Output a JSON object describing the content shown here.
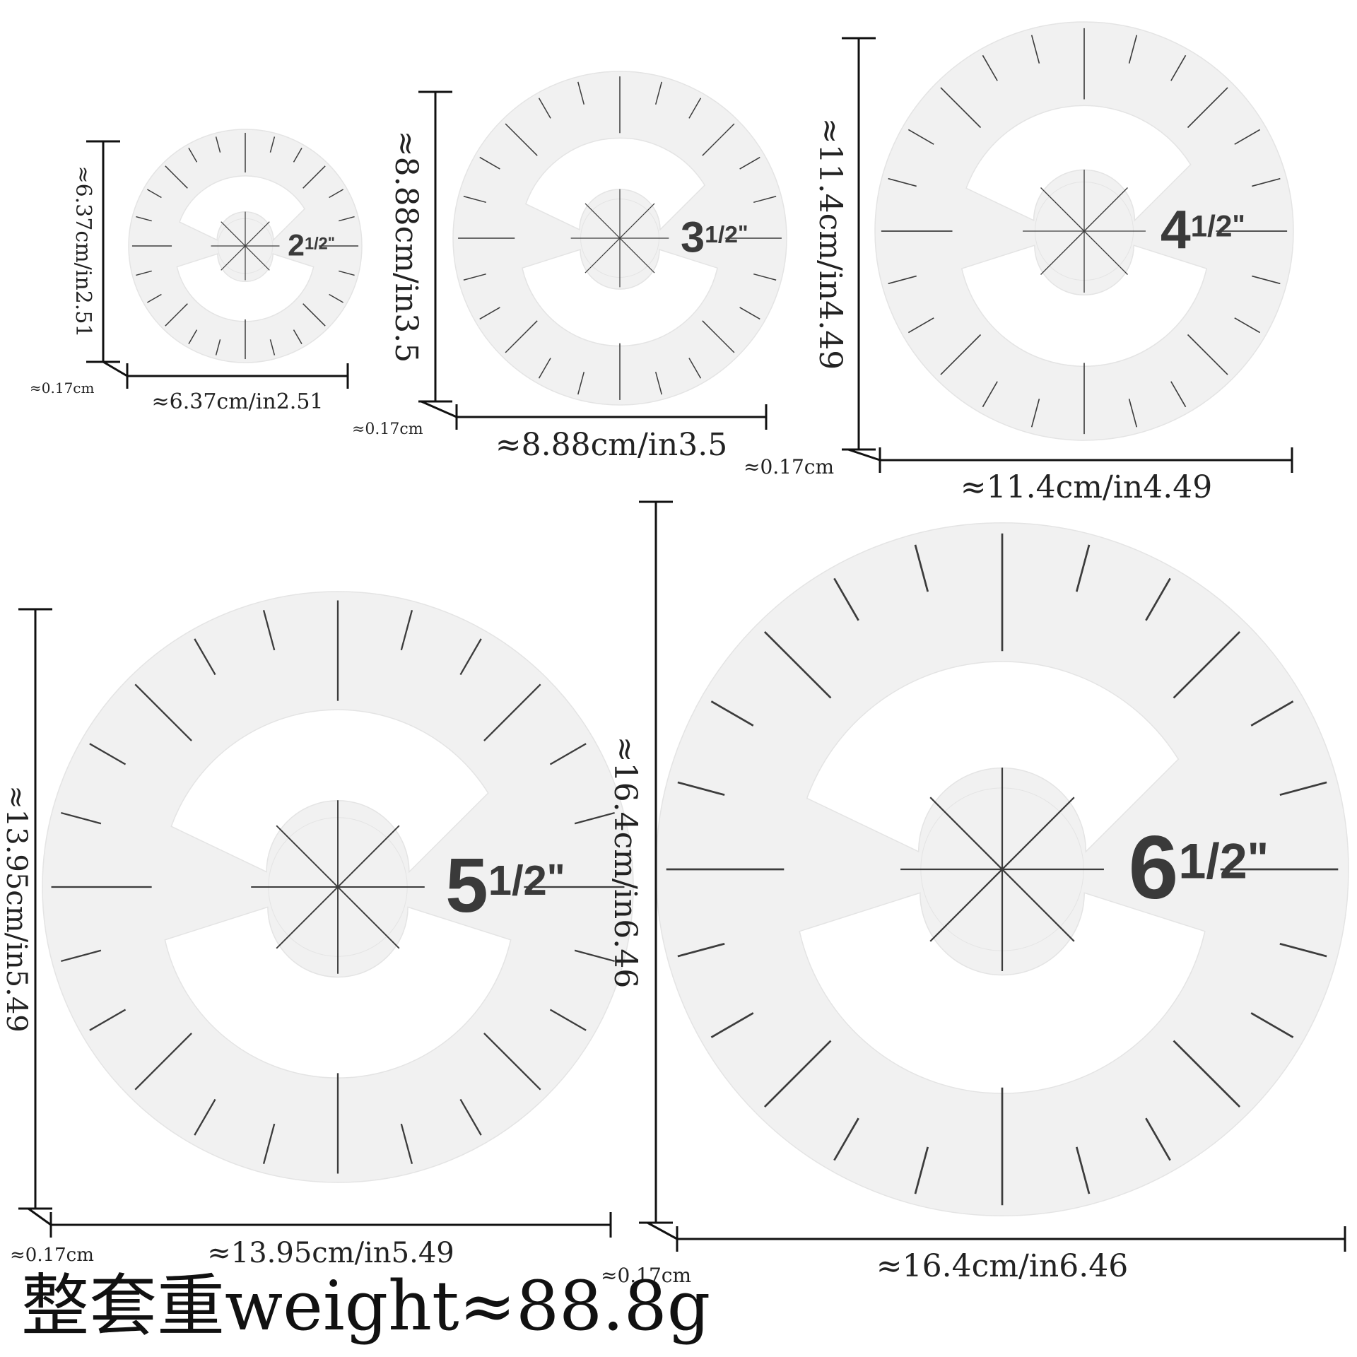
{
  "templates": [
    {
      "id": "t25",
      "label_whole": "2",
      "label_frac": "1/2",
      "label_mark": "\"",
      "width_text": "≈6.37cm/in2.51",
      "height_text": "≈6.37cm/in2.51",
      "thickness_text": "≈0.17cm"
    },
    {
      "id": "t35",
      "label_whole": "3",
      "label_frac": "1/2",
      "label_mark": "\"",
      "width_text": "≈8.88cm/in3.5",
      "height_text": "≈8.88cm/in3.5",
      "thickness_text": "≈0.17cm"
    },
    {
      "id": "t45",
      "label_whole": "4",
      "label_frac": "1/2",
      "label_mark": "\"",
      "width_text": "≈11.4cm/in4.49",
      "height_text": "≈11.4cm/in4.49",
      "thickness_text": "≈0.17cm"
    },
    {
      "id": "t55",
      "label_whole": "5",
      "label_frac": "1/2",
      "label_mark": "\"",
      "width_text": "≈13.95cm/in5.49",
      "height_text": "≈13.95cm/in5.49",
      "thickness_text": "≈0.17cm"
    },
    {
      "id": "t65",
      "label_whole": "6",
      "label_frac": "1/2",
      "label_mark": "\"",
      "width_text": "≈16.4cm/in6.46",
      "height_text": "≈16.4cm/in6.46",
      "thickness_text": "≈0.17cm"
    }
  ],
  "weight_text": "整套重weight≈88.8g",
  "colors": {
    "plate": "#f1f1f1",
    "plate_edge": "#e4e4e4",
    "tick": "#3c3c3c",
    "dimension_line": "#111111"
  }
}
